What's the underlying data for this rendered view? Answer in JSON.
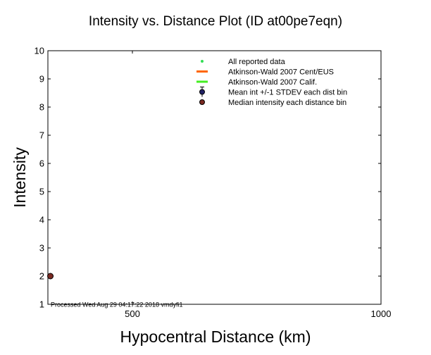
{
  "chart_data": {
    "type": "scatter",
    "title": "Intensity vs. Distance Plot (ID at00pe7eqn)",
    "xlabel": "Hypocentral Distance (km)",
    "ylabel": "Intensity",
    "xlim": [
      330,
      1000
    ],
    "ylim": [
      1,
      10
    ],
    "x_ticks": [
      500,
      1000
    ],
    "y_ticks": [
      1,
      2,
      3,
      4,
      5,
      6,
      7,
      8,
      9,
      10
    ],
    "grid": false,
    "legend_position": "top-right",
    "legend": [
      {
        "label": "All reported data",
        "marker": "dot",
        "color": "#33dd55"
      },
      {
        "label": "Atkinson-Wald 2007 Cent/EUS",
        "marker": "line",
        "color": "#ff6600"
      },
      {
        "label": "Atkinson-Wald 2007 Calif.",
        "marker": "line",
        "color": "#44ee22"
      },
      {
        "label": "Mean int +/-1 STDEV each dist bin",
        "marker": "circle-errorbar",
        "color": "#222266"
      },
      {
        "label": "Median intensity each distance bin",
        "marker": "circle",
        "color": "#7a2a22"
      }
    ],
    "series": [
      {
        "name": "Median intensity each distance bin",
        "points": [
          {
            "x": 335,
            "y": 2
          }
        ],
        "color": "#7a2a22"
      }
    ],
    "footer": "Processed Wed Aug 29 04:17:22 2018 vmdyfi1"
  }
}
